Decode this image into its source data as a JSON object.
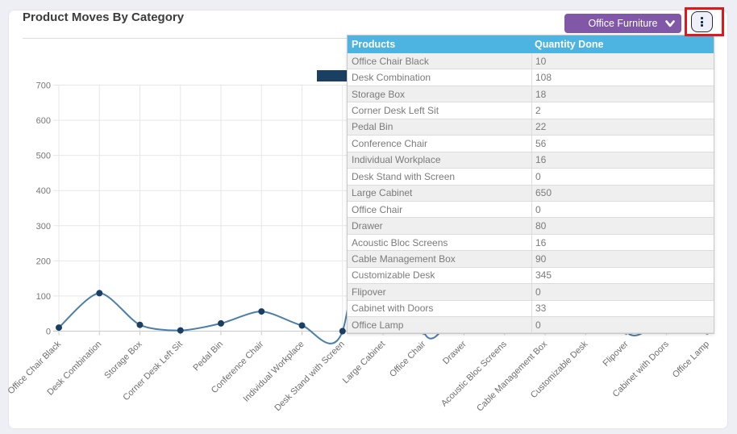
{
  "card": {
    "title": "Product Moves By Category"
  },
  "controls": {
    "category_select": {
      "value": "Office Furniture"
    },
    "kebab_menu": {
      "icon": "kebab-vertical-icon"
    }
  },
  "annotation": {
    "color": "#e1171b",
    "target": "kebab-menu-button"
  },
  "overlay_table": {
    "columns": [
      "Products",
      "Quantity Done"
    ],
    "rows": [
      [
        "Office Chair Black",
        "10"
      ],
      [
        "Desk Combination",
        "108"
      ],
      [
        "Storage Box",
        "18"
      ],
      [
        "Corner Desk Left Sit",
        "2"
      ],
      [
        "Pedal Bin",
        "22"
      ],
      [
        "Conference Chair",
        "56"
      ],
      [
        "Individual Workplace",
        "16"
      ],
      [
        "Desk Stand with Screen",
        "0"
      ],
      [
        "Large Cabinet",
        "650"
      ],
      [
        "Office Chair",
        "0"
      ],
      [
        "Drawer",
        "80"
      ],
      [
        "Acoustic Bloc Screens",
        "16"
      ],
      [
        "Cable Management Box",
        "90"
      ],
      [
        "Customizable Desk",
        "345"
      ],
      [
        "Flipover",
        "0"
      ],
      [
        "Cabinet with Doors",
        "33"
      ],
      [
        "Office Lamp",
        "0"
      ]
    ]
  },
  "chart_data": {
    "type": "line",
    "title": "Product Moves By Category",
    "xlabel": "",
    "ylabel": "",
    "categories": [
      "Office Chair Black",
      "Desk Combination",
      "Storage Box",
      "Corner Desk Left Sit",
      "Pedal Bin",
      "Conference Chair",
      "Individual Workplace",
      "Desk Stand with Screen",
      "Large Cabinet",
      "Office Chair",
      "Drawer",
      "Acoustic Bloc Screens",
      "Cable Management Box",
      "Customizable Desk",
      "Flipover",
      "Cabinet with Doors",
      "Office Lamp"
    ],
    "series": [
      {
        "name": "Quantity Done",
        "values": [
          10,
          108,
          18,
          2,
          22,
          56,
          16,
          0,
          650,
          0,
          80,
          16,
          90,
          345,
          0,
          33,
          0
        ],
        "line_color": "#4b7ea8",
        "marker_color": "#1b3f63"
      }
    ],
    "ylim": [
      0,
      700
    ],
    "yticks": [
      0,
      100,
      200,
      300,
      400,
      500,
      600,
      700
    ],
    "grid": true,
    "legend_position": "top",
    "colors": {
      "gridline": "#e7e7e7",
      "axis": "#c9c9c9",
      "tick_label": "#777777"
    }
  }
}
